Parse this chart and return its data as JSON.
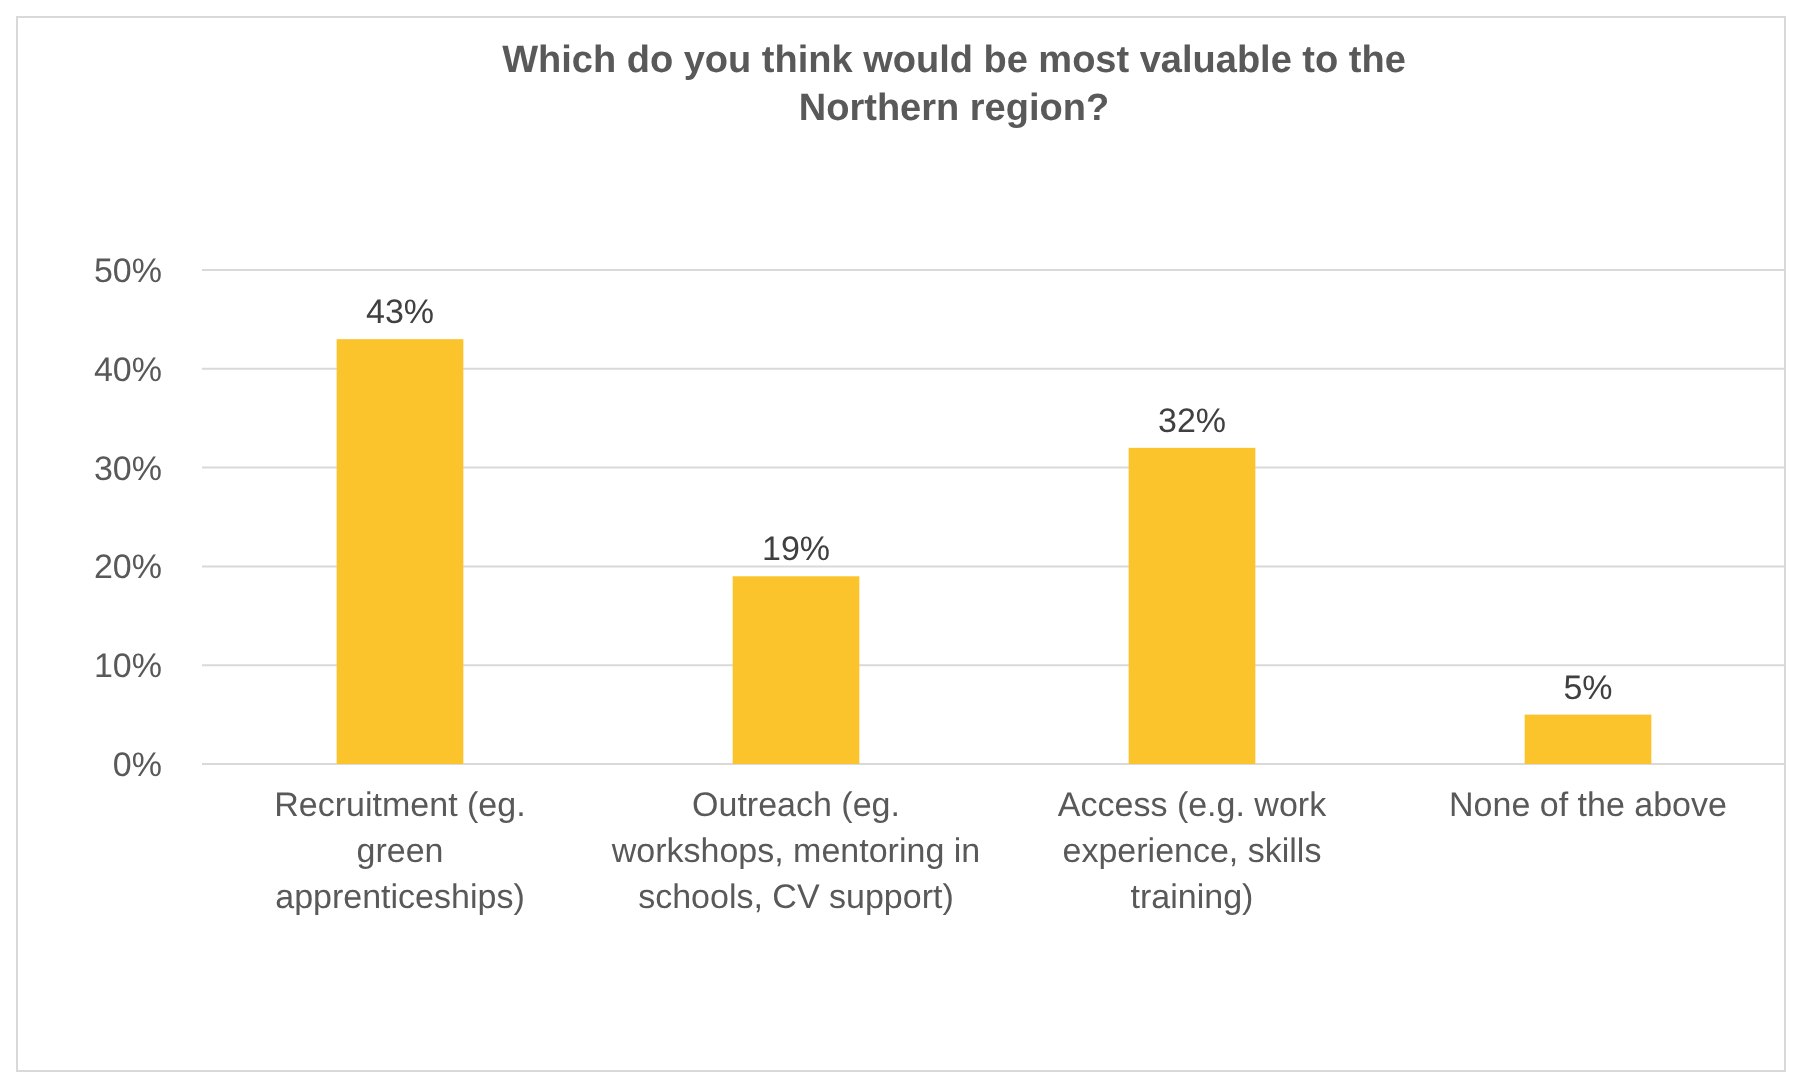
{
  "chart_data": {
    "type": "bar",
    "title": "Which do you think would be most valuable to the Northern region?",
    "categories": [
      "Recruitment (eg. green apprenticeships)",
      "Outreach (eg. workshops, mentoring in schools, CV support)",
      "Access (e.g. work experience, skills training)",
      "None of the above"
    ],
    "values": [
      43,
      19,
      32,
      5
    ],
    "color": "#fcc42c",
    "value_labels": [
      "43%",
      "19%",
      "32%",
      "5%"
    ],
    "ylim": [
      0,
      50
    ],
    "yticks": [
      {
        "value": 0,
        "label": "0%"
      },
      {
        "value": 10,
        "label": "10%"
      },
      {
        "value": 20,
        "label": "20%"
      },
      {
        "value": 30,
        "label": "30%"
      },
      {
        "value": 40,
        "label": "40%"
      },
      {
        "value": 50,
        "label": "50%"
      }
    ],
    "grid": "y"
  }
}
